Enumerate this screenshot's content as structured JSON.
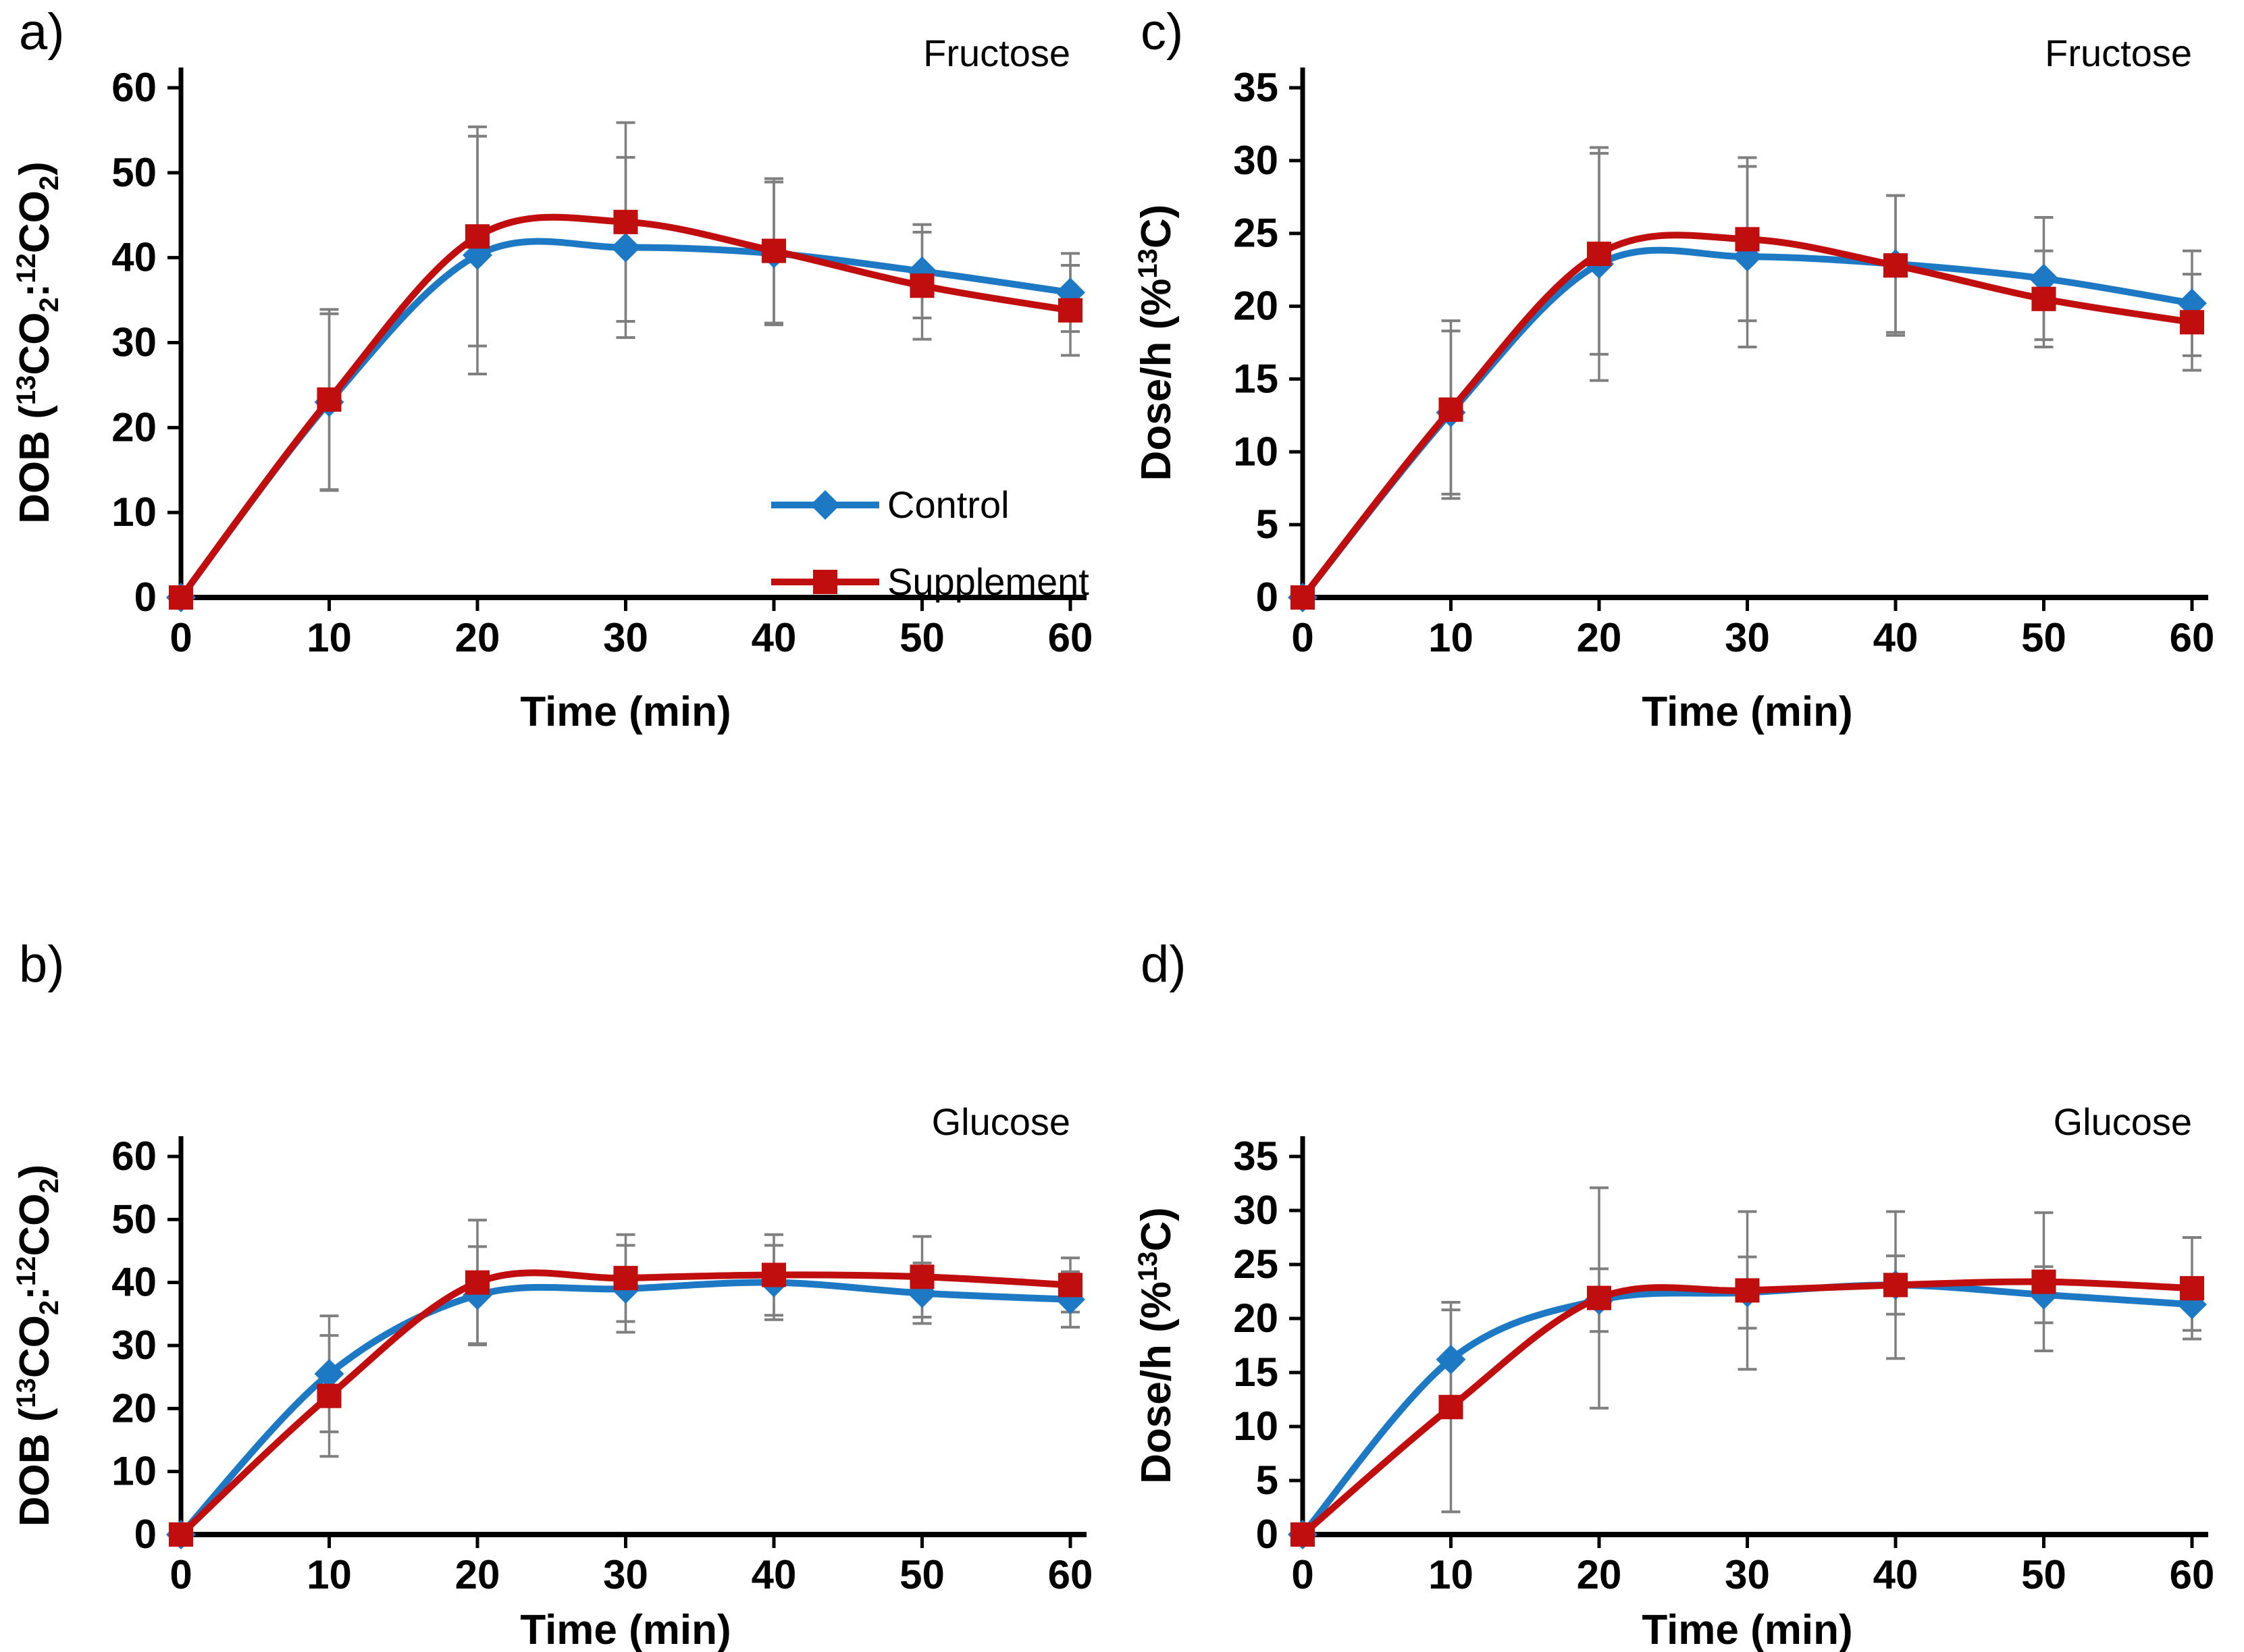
{
  "style": {
    "control_color": "#1E79C4",
    "supplement_color": "#C00D0D",
    "error_color": "#7F7F7F",
    "axis_color": "#000000",
    "background": "#FFFFFF"
  },
  "chart_data": [
    {
      "id": "a",
      "letter": "a)",
      "title": "Fructose",
      "layout": "top",
      "type": "line",
      "x": [
        0,
        10,
        20,
        30,
        40,
        50,
        60
      ],
      "xlabel": "Time (min)",
      "xlim": [
        0,
        60
      ],
      "ylabel": "DOB (13CO2:12CO2)",
      "ylabel_parts": [
        {
          "text": "DOB ("
        },
        {
          "text": "13",
          "style": "sup"
        },
        {
          "text": "CO"
        },
        {
          "text": "2",
          "style": "sub"
        },
        {
          "text": ":"
        },
        {
          "text": "12",
          "style": "sup"
        },
        {
          "text": "CO"
        },
        {
          "text": "2",
          "style": "sub"
        },
        {
          "text": ")"
        }
      ],
      "ylim": [
        0,
        60
      ],
      "yticks": [
        0,
        10,
        20,
        30,
        40,
        50,
        60
      ],
      "grid": false,
      "series": [
        {
          "name": "Control",
          "marker": "diamond",
          "color_key": "control",
          "values": [
            0,
            23.0,
            40.3,
            41.2,
            40.5,
            38.4,
            35.9
          ],
          "errors": [
            0,
            10.4,
            14.0,
            10.6,
            8.4,
            5.5,
            4.6
          ]
        },
        {
          "name": "Supplement",
          "marker": "square",
          "color_key": "supplement",
          "values": [
            0,
            23.3,
            42.5,
            44.2,
            40.8,
            36.7,
            33.8
          ],
          "errors": [
            0,
            10.6,
            12.9,
            11.7,
            8.5,
            6.3,
            5.3
          ]
        }
      ],
      "legend": {
        "show": true,
        "entries": [
          "Control",
          "Supplement"
        ],
        "position": "inside lower right"
      }
    },
    {
      "id": "c",
      "letter": "c)",
      "title": "Fructose",
      "layout": "top",
      "type": "line",
      "x": [
        0,
        10,
        20,
        30,
        40,
        50,
        60
      ],
      "xlabel": "Time (min)",
      "xlim": [
        0,
        60
      ],
      "ylabel": "Dose/h (%13C)",
      "ylabel_parts": [
        {
          "text": "Dose/h (%"
        },
        {
          "text": "13",
          "style": "sup"
        },
        {
          "text": "C"
        },
        {
          "text": ")"
        }
      ],
      "ylim": [
        0,
        35
      ],
      "yticks": [
        0,
        5,
        10,
        15,
        20,
        25,
        30,
        35
      ],
      "grid": false,
      "series": [
        {
          "name": "Control",
          "marker": "diamond",
          "color_key": "control",
          "values": [
            0,
            12.7,
            22.9,
            23.4,
            22.9,
            21.9,
            20.2
          ],
          "errors": [
            0,
            5.6,
            8.0,
            6.2,
            4.7,
            4.2,
            3.6
          ]
        },
        {
          "name": "Supplement",
          "marker": "square",
          "color_key": "supplement",
          "values": [
            0,
            12.9,
            23.6,
            24.6,
            22.8,
            20.5,
            18.9
          ],
          "errors": [
            0,
            6.1,
            6.9,
            5.6,
            4.8,
            3.3,
            3.3
          ]
        }
      ],
      "legend": {
        "show": false,
        "entries": []
      }
    },
    {
      "id": "b",
      "letter": "b)",
      "title": "Glucose",
      "layout": "bottom",
      "type": "line",
      "x": [
        0,
        10,
        20,
        30,
        40,
        50,
        60
      ],
      "xlabel": "Time (min)",
      "xlim": [
        0,
        60
      ],
      "ylabel": "DOB (13CO2:12CO2)",
      "ylabel_parts": [
        {
          "text": "DOB ("
        },
        {
          "text": "13",
          "style": "sup"
        },
        {
          "text": "CO"
        },
        {
          "text": "2",
          "style": "sub"
        },
        {
          "text": ":"
        },
        {
          "text": "12",
          "style": "sup"
        },
        {
          "text": "CO"
        },
        {
          "text": "2",
          "style": "sub"
        },
        {
          "text": ")"
        }
      ],
      "ylim": [
        0,
        60
      ],
      "yticks": [
        0,
        10,
        20,
        30,
        40,
        50,
        60
      ],
      "grid": false,
      "series": [
        {
          "name": "Control",
          "marker": "diamond",
          "color_key": "control",
          "values": [
            0,
            25.5,
            38.0,
            39.0,
            40.0,
            38.3,
            37.3
          ],
          "errors": [
            0,
            9.2,
            7.7,
            6.9,
            5.9,
            4.8,
            4.4
          ]
        },
        {
          "name": "Supplement",
          "marker": "square",
          "color_key": "supplement",
          "values": [
            0,
            22.0,
            40.0,
            40.7,
            41.2,
            40.9,
            39.6
          ],
          "errors": [
            0,
            9.6,
            9.9,
            6.9,
            6.4,
            6.4,
            4.3
          ]
        }
      ],
      "legend": {
        "show": false,
        "entries": []
      }
    },
    {
      "id": "d",
      "letter": "d)",
      "title": "Glucose",
      "layout": "bottom",
      "type": "line",
      "x": [
        0,
        10,
        20,
        30,
        40,
        50,
        60
      ],
      "xlabel": "Time (min)",
      "xlim": [
        0,
        60
      ],
      "ylabel": "Dose/h (%13C)",
      "ylabel_parts": [
        {
          "text": "Dose/h (%"
        },
        {
          "text": "13",
          "style": "sup"
        },
        {
          "text": "C"
        },
        {
          "text": ")"
        }
      ],
      "ylim": [
        0,
        35
      ],
      "yticks": [
        0,
        5,
        10,
        15,
        20,
        25,
        30,
        35
      ],
      "grid": false,
      "series": [
        {
          "name": "Control",
          "marker": "diamond",
          "color_key": "control",
          "values": [
            0,
            16.2,
            21.7,
            22.4,
            23.1,
            22.2,
            21.3
          ],
          "errors": [
            0,
            4.6,
            2.9,
            3.3,
            2.7,
            2.6,
            2.4
          ]
        },
        {
          "name": "Supplement",
          "marker": "square",
          "color_key": "supplement",
          "values": [
            0,
            11.8,
            21.9,
            22.6,
            23.1,
            23.4,
            22.8
          ],
          "errors": [
            0,
            9.7,
            10.2,
            7.3,
            6.8,
            6.4,
            4.7
          ]
        }
      ],
      "legend": {
        "show": false,
        "entries": []
      }
    }
  ]
}
